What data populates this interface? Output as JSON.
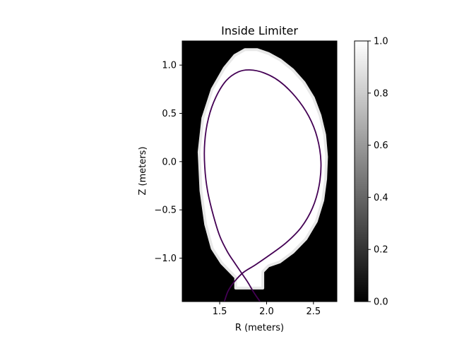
{
  "chart_data": {
    "type": "heatmap",
    "title": "Inside Limiter",
    "xlabel": "R (meters)",
    "ylabel": "Z (meters)",
    "xlim": [
      1.1,
      2.75
    ],
    "ylim": [
      -1.45,
      1.25
    ],
    "xticks": [
      1.5,
      2.0,
      2.5
    ],
    "xtick_labels": [
      "1.5",
      "2.0",
      "2.5"
    ],
    "yticks": [
      1.0,
      0.5,
      0.0,
      -0.5,
      -1.0
    ],
    "ytick_labels": [
      "1.0",
      "0.5",
      "0.0",
      "−0.5",
      "−1.0"
    ],
    "grid": false,
    "colormap": "gray",
    "colorbar": {
      "range": [
        0.0,
        1.0
      ],
      "ticks": [
        1.0,
        0.8,
        0.6,
        0.4,
        0.2,
        0.0
      ],
      "tick_labels": [
        "1.0",
        "0.8",
        "0.6",
        "0.4",
        "0.2",
        "0.0"
      ]
    },
    "region_inside_value": 1.0,
    "region_outside_value": 0.0,
    "limiter_boundary": [
      [
        1.77,
        1.16
      ],
      [
        1.9,
        1.16
      ],
      [
        2.02,
        1.12
      ],
      [
        2.15,
        1.05
      ],
      [
        2.28,
        0.95
      ],
      [
        2.4,
        0.82
      ],
      [
        2.5,
        0.66
      ],
      [
        2.57,
        0.48
      ],
      [
        2.62,
        0.28
      ],
      [
        2.64,
        0.05
      ],
      [
        2.63,
        -0.18
      ],
      [
        2.6,
        -0.4
      ],
      [
        2.53,
        -0.62
      ],
      [
        2.42,
        -0.8
      ],
      [
        2.28,
        -0.94
      ],
      [
        2.14,
        -1.04
      ],
      [
        2.02,
        -1.08
      ],
      [
        1.96,
        -1.14
      ],
      [
        1.96,
        -1.31
      ],
      [
        1.67,
        -1.31
      ],
      [
        1.67,
        -1.2
      ],
      [
        1.52,
        -1.05
      ],
      [
        1.42,
        -0.9
      ],
      [
        1.35,
        -0.65
      ],
      [
        1.3,
        -0.3
      ],
      [
        1.28,
        0.1
      ],
      [
        1.32,
        0.45
      ],
      [
        1.42,
        0.75
      ],
      [
        1.55,
        0.97
      ],
      [
        1.66,
        1.1
      ]
    ],
    "separatrix": {
      "color": "#440154",
      "points": [
        [
          1.93,
          -1.45
        ],
        [
          1.86,
          -1.35
        ],
        [
          1.8,
          -1.25
        ],
        [
          1.73,
          -1.15
        ],
        [
          1.66,
          -1.05
        ],
        [
          1.58,
          -0.93
        ],
        [
          1.5,
          -0.77
        ],
        [
          1.43,
          -0.55
        ],
        [
          1.37,
          -0.3
        ],
        [
          1.34,
          -0.05
        ],
        [
          1.34,
          0.2
        ],
        [
          1.38,
          0.45
        ],
        [
          1.46,
          0.67
        ],
        [
          1.57,
          0.84
        ],
        [
          1.7,
          0.93
        ],
        [
          1.82,
          0.95
        ],
        [
          1.97,
          0.92
        ],
        [
          2.14,
          0.83
        ],
        [
          2.31,
          0.67
        ],
        [
          2.45,
          0.47
        ],
        [
          2.54,
          0.25
        ],
        [
          2.58,
          0.0
        ],
        [
          2.56,
          -0.25
        ],
        [
          2.49,
          -0.48
        ],
        [
          2.37,
          -0.68
        ],
        [
          2.21,
          -0.84
        ],
        [
          2.03,
          -0.97
        ],
        [
          1.88,
          -1.07
        ],
        [
          1.75,
          -1.15
        ],
        [
          1.66,
          -1.24
        ],
        [
          1.59,
          -1.34
        ],
        [
          1.55,
          -1.45
        ]
      ]
    }
  }
}
